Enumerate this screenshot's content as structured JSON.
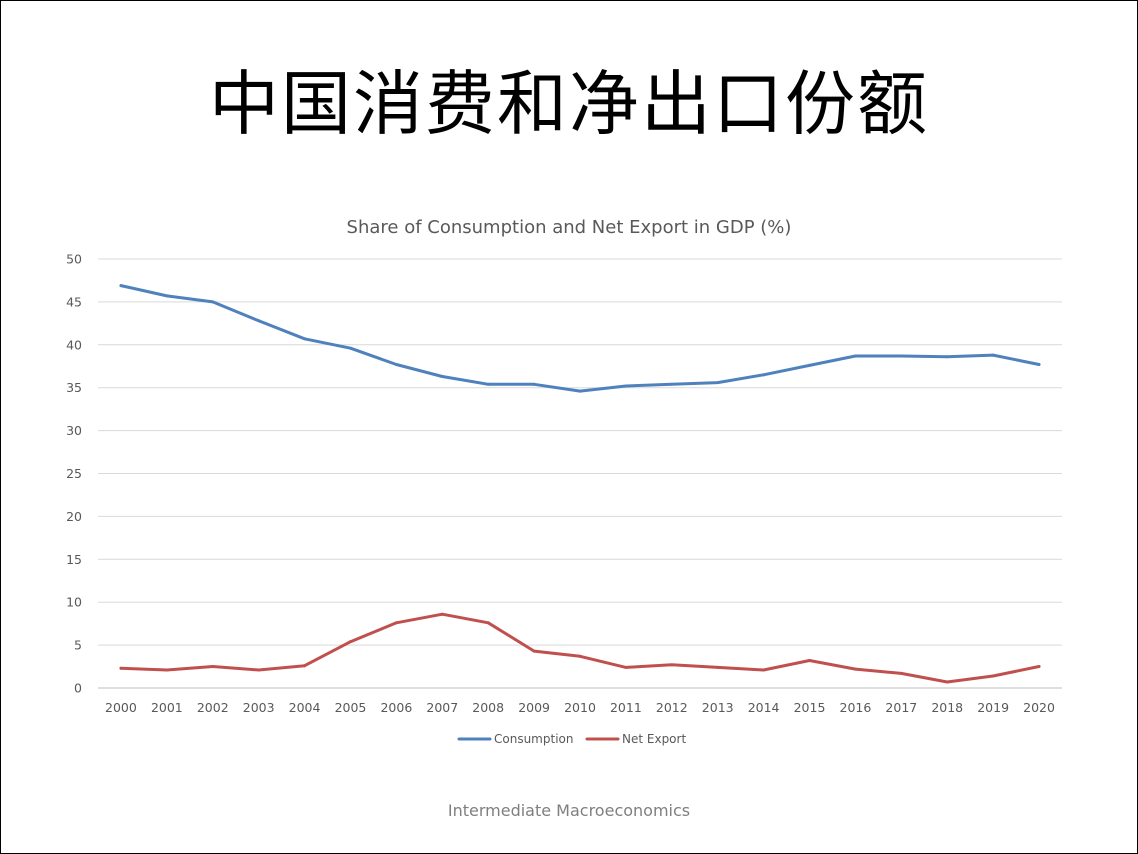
{
  "slide": {
    "title": "中国消费和净出口份额",
    "footer": "Intermediate Macroeconomics"
  },
  "colors": {
    "consumption": "#4f81bd",
    "net_export": "#c0504d",
    "grid": "#d9d9d9",
    "axis": "#bfbfbf",
    "text": "#595959"
  },
  "chart_data": {
    "type": "line",
    "title": "Share of Consumption and Net Export in GDP (%)",
    "xlabel": "",
    "ylabel": "",
    "categories": [
      "2000",
      "2001",
      "2002",
      "2003",
      "2004",
      "2005",
      "2006",
      "2007",
      "2008",
      "2009",
      "2010",
      "2011",
      "2012",
      "2013",
      "2014",
      "2015",
      "2016",
      "2017",
      "2018",
      "2019",
      "2020"
    ],
    "ylim": [
      0,
      50
    ],
    "yticks": [
      0,
      5,
      10,
      15,
      20,
      25,
      30,
      35,
      40,
      45,
      50
    ],
    "grid": true,
    "legend_position": "bottom",
    "series": [
      {
        "name": "Consumption",
        "color": "#4f81bd",
        "values": [
          46.9,
          45.7,
          45.0,
          42.8,
          40.7,
          39.6,
          37.7,
          36.3,
          35.4,
          35.4,
          34.6,
          35.2,
          35.4,
          35.6,
          36.5,
          37.6,
          38.7,
          38.7,
          38.6,
          38.8,
          37.7
        ]
      },
      {
        "name": "Net Export",
        "color": "#c0504d",
        "values": [
          2.3,
          2.1,
          2.5,
          2.1,
          2.6,
          5.4,
          7.6,
          8.6,
          7.6,
          4.3,
          3.7,
          2.4,
          2.7,
          2.4,
          2.1,
          3.2,
          2.2,
          1.7,
          0.7,
          1.4,
          2.5
        ]
      }
    ]
  }
}
